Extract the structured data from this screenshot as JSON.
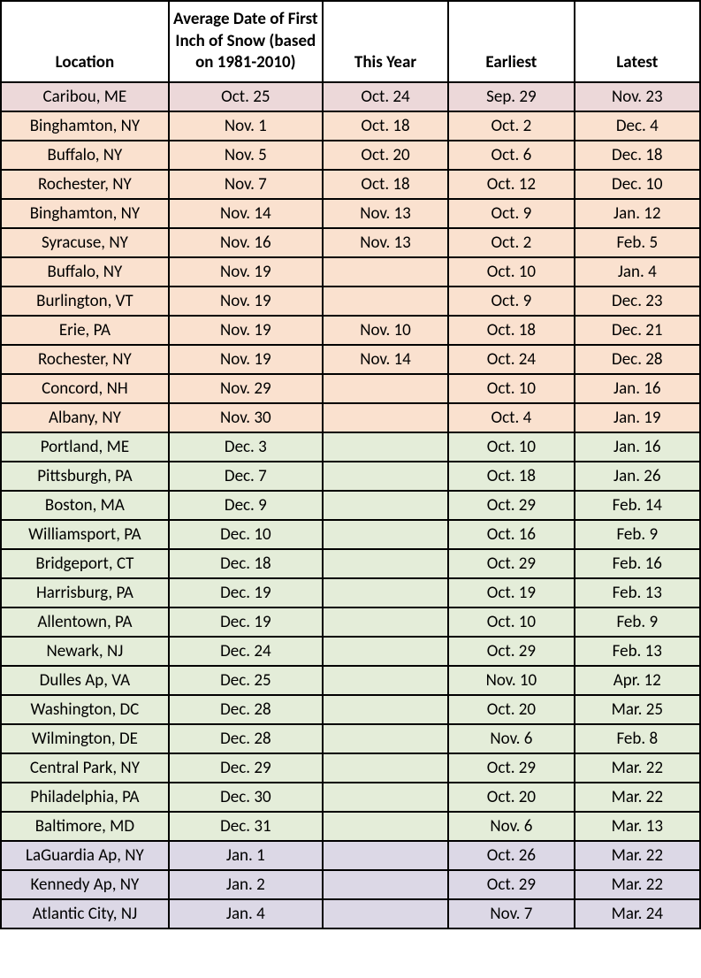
{
  "table": {
    "headers": {
      "location": "Location",
      "avg": "Average Date of First Inch of Snow (based on 1981-2010)",
      "thisYear": "This Year",
      "earliest": "Earliest",
      "latest": "Latest"
    },
    "row_colors": {
      "pink": "#ecd8d9",
      "peach": "#fae1cf",
      "green": "#e4edd9",
      "lavender": "#dcd8e6"
    },
    "border_color": "#000000",
    "header_bg": "#ffffff",
    "font_family": "Calibri, Arial, sans-serif",
    "header_fontsize": 19,
    "cell_fontsize": 19,
    "rows": [
      {
        "location": "Caribou, ME",
        "avg": "Oct. 25",
        "thisYear": "Oct. 24",
        "earliest": "Sep. 29",
        "latest": "Nov. 23",
        "color": "pink"
      },
      {
        "location": "Binghamton, NY",
        "avg": "Nov. 1",
        "thisYear": "Oct. 18",
        "earliest": "Oct. 2",
        "latest": "Dec. 4",
        "color": "peach"
      },
      {
        "location": "Buffalo, NY",
        "avg": "Nov. 5",
        "thisYear": "Oct. 20",
        "earliest": "Oct. 6",
        "latest": "Dec. 18",
        "color": "peach"
      },
      {
        "location": "Rochester, NY",
        "avg": "Nov. 7",
        "thisYear": "Oct. 18",
        "earliest": "Oct. 12",
        "latest": "Dec. 10",
        "color": "peach"
      },
      {
        "location": "Binghamton, NY",
        "avg": "Nov. 14",
        "thisYear": "Nov. 13",
        "earliest": "Oct. 9",
        "latest": "Jan. 12",
        "color": "peach"
      },
      {
        "location": "Syracuse, NY",
        "avg": "Nov. 16",
        "thisYear": "Nov. 13",
        "earliest": "Oct. 2",
        "latest": "Feb. 5",
        "color": "peach"
      },
      {
        "location": "Buffalo, NY",
        "avg": "Nov. 19",
        "thisYear": "",
        "earliest": "Oct. 10",
        "latest": "Jan. 4",
        "color": "peach"
      },
      {
        "location": "Burlington, VT",
        "avg": "Nov. 19",
        "thisYear": "",
        "earliest": "Oct. 9",
        "latest": "Dec. 23",
        "color": "peach"
      },
      {
        "location": "Erie, PA",
        "avg": "Nov. 19",
        "thisYear": "Nov. 10",
        "earliest": "Oct. 18",
        "latest": "Dec. 21",
        "color": "peach"
      },
      {
        "location": "Rochester, NY",
        "avg": "Nov. 19",
        "thisYear": "Nov. 14",
        "earliest": "Oct. 24",
        "latest": "Dec. 28",
        "color": "peach"
      },
      {
        "location": "Concord, NH",
        "avg": "Nov. 29",
        "thisYear": "",
        "earliest": "Oct. 10",
        "latest": "Jan. 16",
        "color": "peach"
      },
      {
        "location": "Albany, NY",
        "avg": "Nov. 30",
        "thisYear": "",
        "earliest": "Oct. 4",
        "latest": "Jan. 19",
        "color": "peach"
      },
      {
        "location": "Portland, ME",
        "avg": "Dec. 3",
        "thisYear": "",
        "earliest": "Oct. 10",
        "latest": "Jan. 16",
        "color": "green"
      },
      {
        "location": "Pittsburgh, PA",
        "avg": "Dec. 7",
        "thisYear": "",
        "earliest": "Oct. 18",
        "latest": "Jan. 26",
        "color": "green"
      },
      {
        "location": "Boston, MA",
        "avg": "Dec. 9",
        "thisYear": "",
        "earliest": "Oct. 29",
        "latest": "Feb. 14",
        "color": "green"
      },
      {
        "location": "Williamsport, PA",
        "avg": "Dec. 10",
        "thisYear": "",
        "earliest": "Oct. 16",
        "latest": "Feb. 9",
        "color": "green"
      },
      {
        "location": "Bridgeport, CT",
        "avg": "Dec. 18",
        "thisYear": "",
        "earliest": "Oct. 29",
        "latest": "Feb. 16",
        "color": "green"
      },
      {
        "location": "Harrisburg, PA",
        "avg": "Dec. 19",
        "thisYear": "",
        "earliest": "Oct. 19",
        "latest": "Feb. 13",
        "color": "green"
      },
      {
        "location": "Allentown, PA",
        "avg": "Dec. 19",
        "thisYear": "",
        "earliest": "Oct. 10",
        "latest": "Feb. 9",
        "color": "green"
      },
      {
        "location": "Newark, NJ",
        "avg": "Dec. 24",
        "thisYear": "",
        "earliest": "Oct. 29",
        "latest": "Feb. 13",
        "color": "green"
      },
      {
        "location": "Dulles Ap, VA",
        "avg": "Dec. 25",
        "thisYear": "",
        "earliest": "Nov. 10",
        "latest": "Apr. 12",
        "color": "green"
      },
      {
        "location": "Washington, DC",
        "avg": "Dec. 28",
        "thisYear": "",
        "earliest": "Oct. 20",
        "latest": "Mar. 25",
        "color": "green"
      },
      {
        "location": "Wilmington, DE",
        "avg": "Dec. 28",
        "thisYear": "",
        "earliest": "Nov. 6",
        "latest": "Feb. 8",
        "color": "green"
      },
      {
        "location": "Central Park, NY",
        "avg": "Dec. 29",
        "thisYear": "",
        "earliest": "Oct. 29",
        "latest": "Mar. 22",
        "color": "green"
      },
      {
        "location": "Philadelphia, PA",
        "avg": "Dec. 30",
        "thisYear": "",
        "earliest": "Oct. 20",
        "latest": "Mar. 22",
        "color": "green"
      },
      {
        "location": "Baltimore, MD",
        "avg": "Dec. 31",
        "thisYear": "",
        "earliest": "Nov. 6",
        "latest": "Mar. 13",
        "color": "green"
      },
      {
        "location": "LaGuardia Ap, NY",
        "avg": "Jan. 1",
        "thisYear": "",
        "earliest": "Oct. 26",
        "latest": "Mar. 22",
        "color": "lavender"
      },
      {
        "location": "Kennedy Ap, NY",
        "avg": "Jan. 2",
        "thisYear": "",
        "earliest": "Oct. 29",
        "latest": "Mar. 22",
        "color": "lavender"
      },
      {
        "location": "Atlantic City, NJ",
        "avg": "Jan. 4",
        "thisYear": "",
        "earliest": "Nov. 7",
        "latest": "Mar. 24",
        "color": "lavender"
      }
    ]
  }
}
